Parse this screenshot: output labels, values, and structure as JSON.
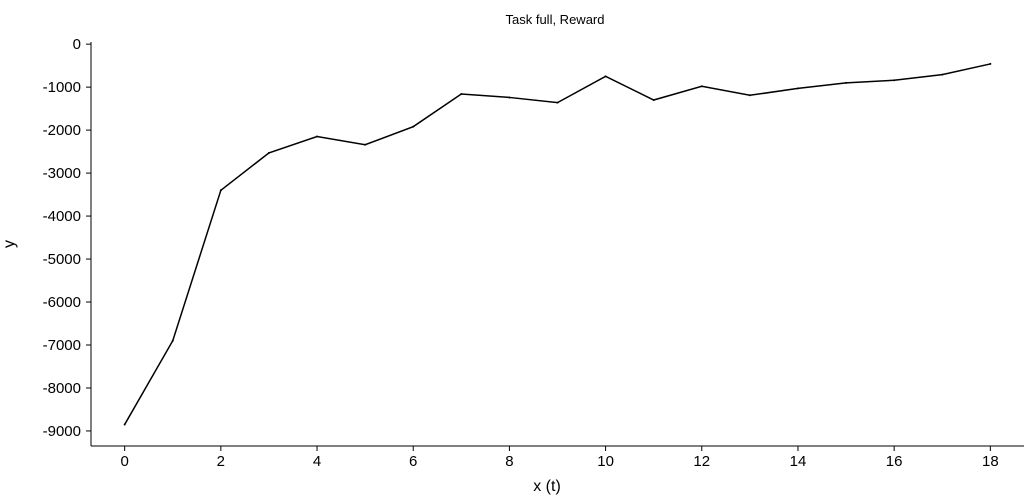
{
  "chart_data": {
    "type": "line",
    "title": "Task full, Reward",
    "xlabel": "x (t)",
    "ylabel": "y",
    "xlim": [
      -0.7,
      18.7
    ],
    "ylim": [
      -9350,
      50
    ],
    "x_ticks": [
      0,
      2,
      4,
      6,
      8,
      10,
      12,
      14,
      16,
      18
    ],
    "y_ticks": [
      0,
      -1000,
      -2000,
      -3000,
      -4000,
      -5000,
      -6000,
      -7000,
      -8000,
      -9000
    ],
    "grid": false,
    "series": [
      {
        "x": [
          0,
          1,
          2,
          3,
          4,
          5,
          6,
          7,
          8,
          9,
          10,
          11,
          12,
          13,
          14,
          15,
          16,
          17,
          18
        ],
        "values": [
          -8850,
          -6900,
          -3400,
          -2530,
          -2150,
          -2340,
          -1920,
          -1160,
          -1240,
          -1360,
          -750,
          -1300,
          -980,
          -1190,
          -1030,
          -900,
          -840,
          -710,
          -460
        ],
        "color": "#000000"
      }
    ]
  }
}
